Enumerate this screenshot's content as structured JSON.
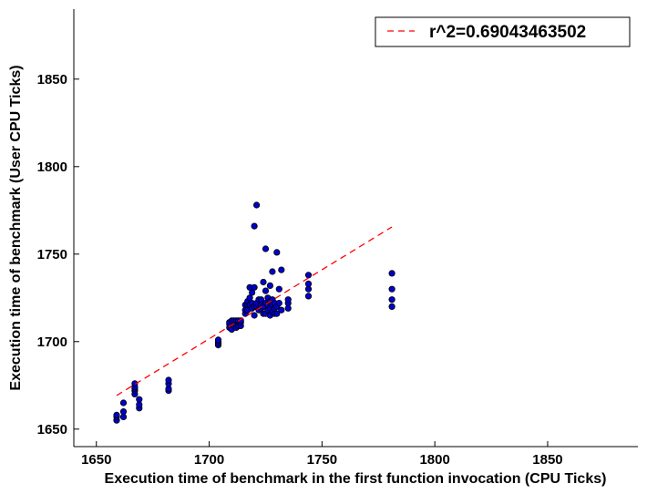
{
  "chart_data": {
    "type": "scatter",
    "xlabel": "Execution time of benchmark in the first function invocation (CPU Ticks)",
    "ylabel": "Execution time of benchmark (User CPU Ticks)",
    "xlim": [
      1640,
      1890
    ],
    "ylim": [
      1640,
      1890
    ],
    "xticks": [
      1650,
      1700,
      1750,
      1800,
      1850
    ],
    "yticks": [
      1650,
      1700,
      1750,
      1800,
      1850
    ],
    "grid": false,
    "legend_position": "top-right",
    "colors": {
      "points": "#0000cc",
      "point_edge": "#000000",
      "fit_line": "#ff0000"
    },
    "series": [
      {
        "kind": "points",
        "x": [
          1659,
          1659,
          1659,
          1662,
          1662,
          1662,
          1667,
          1667,
          1667,
          1667,
          1667,
          1669,
          1669,
          1669,
          1682,
          1682,
          1682,
          1682,
          1704,
          1704,
          1704,
          1704,
          1709,
          1709,
          1709,
          1710,
          1710,
          1711,
          1711,
          1712,
          1712,
          1712,
          1713,
          1713,
          1713,
          1714,
          1714,
          1714,
          1716,
          1716,
          1716,
          1717,
          1717,
          1717,
          1718,
          1718,
          1718,
          1719,
          1719,
          1719,
          1720,
          1720,
          1720,
          1720,
          1721,
          1721,
          1721,
          1722,
          1722,
          1723,
          1723,
          1723,
          1724,
          1724,
          1724,
          1725,
          1725,
          1725,
          1725,
          1726,
          1726,
          1726,
          1727,
          1727,
          1727,
          1727,
          1728,
          1728,
          1728,
          1728,
          1729,
          1729,
          1729,
          1730,
          1730,
          1730,
          1731,
          1731,
          1732,
          1732,
          1735,
          1735,
          1735,
          1744,
          1744,
          1744,
          1744,
          1781,
          1781,
          1781,
          1781
        ],
        "y": [
          1655,
          1657,
          1658,
          1657,
          1660,
          1665,
          1670,
          1672,
          1673,
          1674,
          1676,
          1662,
          1664,
          1667,
          1672,
          1673,
          1676,
          1678,
          1698,
          1699,
          1700,
          1701,
          1708,
          1710,
          1711,
          1707,
          1712,
          1709,
          1712,
          1708,
          1710,
          1712,
          1709,
          1711,
          1712,
          1709,
          1711,
          1712,
          1716,
          1718,
          1721,
          1718,
          1721,
          1723,
          1721,
          1725,
          1731,
          1719,
          1722,
          1728,
          1715,
          1720,
          1731,
          1766,
          1720,
          1722,
          1778,
          1718,
          1724,
          1719,
          1721,
          1724,
          1716,
          1720,
          1734,
          1716,
          1722,
          1729,
          1753,
          1718,
          1721,
          1725,
          1715,
          1719,
          1723,
          1732,
          1717,
          1721,
          1724,
          1740,
          1716,
          1719,
          1722,
          1716,
          1720,
          1751,
          1722,
          1730,
          1718,
          1741,
          1719,
          1722,
          1724,
          1726,
          1730,
          1733,
          1738,
          1720,
          1724,
          1730,
          1739
        ]
      },
      {
        "kind": "fit_line",
        "name": "r^2=0.69043463502",
        "x": [
          1659,
          1781
        ],
        "y": [
          1669.2,
          1765.5
        ]
      }
    ]
  }
}
